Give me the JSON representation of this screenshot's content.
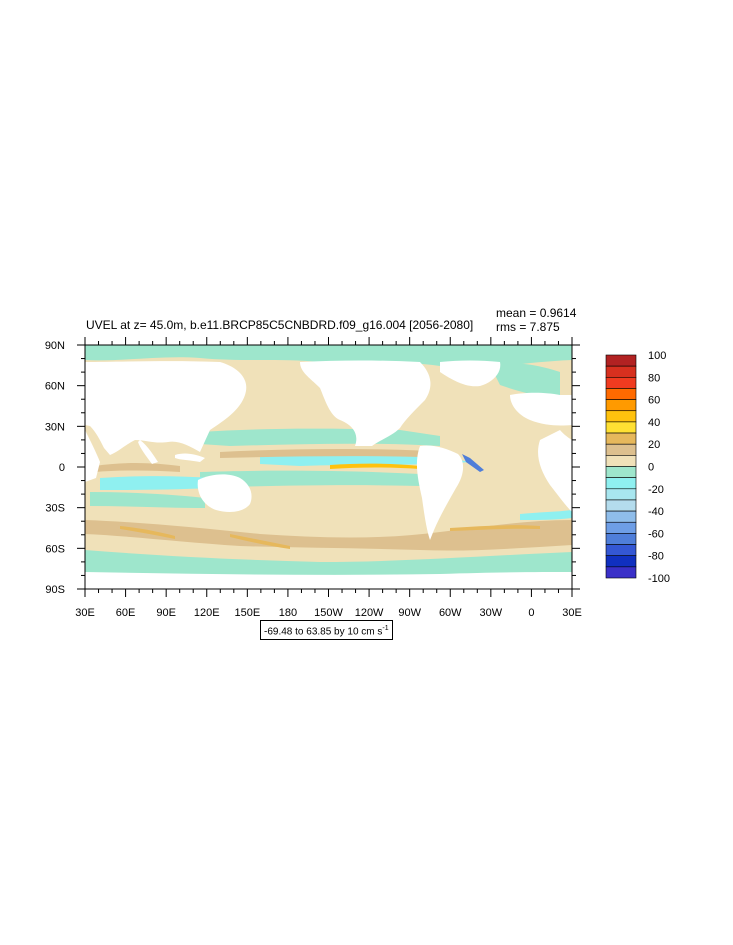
{
  "title": "UVEL at z=  45.0m, b.e11.BRCP85C5CNBDRD.f09_g16.004 [2056-2080]",
  "stats": {
    "mean": "mean = 0.9614",
    "rms": "rms = 7.875"
  },
  "range": {
    "text": "-69.48 to 63.85 by 10 cm s",
    "exponent": "-1"
  },
  "lat_labels": [
    "90N",
    "60N",
    "30N",
    "0",
    "30S",
    "60S",
    "90S"
  ],
  "lon_labels": [
    "30E",
    "60E",
    "90E",
    "120E",
    "150E",
    "180",
    "150W",
    "120W",
    "90W",
    "60W",
    "30W",
    "0",
    "30E"
  ],
  "colorbar": {
    "labels": [
      "100",
      "80",
      "60",
      "40",
      "20",
      "0",
      "-20",
      "-40",
      "-60",
      "-80",
      "-100"
    ],
    "colors": [
      "#b22222",
      "#d7301f",
      "#f03b20",
      "#ff6a00",
      "#ff9a00",
      "#ffc20e",
      "#ffe033",
      "#e6b85c",
      "#ddc08f",
      "#f0e1b9",
      "#9ee6cc",
      "#8ff0f0",
      "#a8e6ef",
      "#b4dced",
      "#8fbdea",
      "#6e9ee6",
      "#4f7ed9",
      "#3457d4",
      "#1030c0",
      "#3a30c8"
    ]
  },
  "colors": {
    "ocean_base": "#f0e1b9",
    "weak_neg": "#9ee6cc",
    "cyan": "#8ff0f0",
    "tan": "#ddc08f",
    "orange": "#e6b85c",
    "yellow": "#ffc20e",
    "blue": "#4f7ed9",
    "land": "#ffffff"
  }
}
